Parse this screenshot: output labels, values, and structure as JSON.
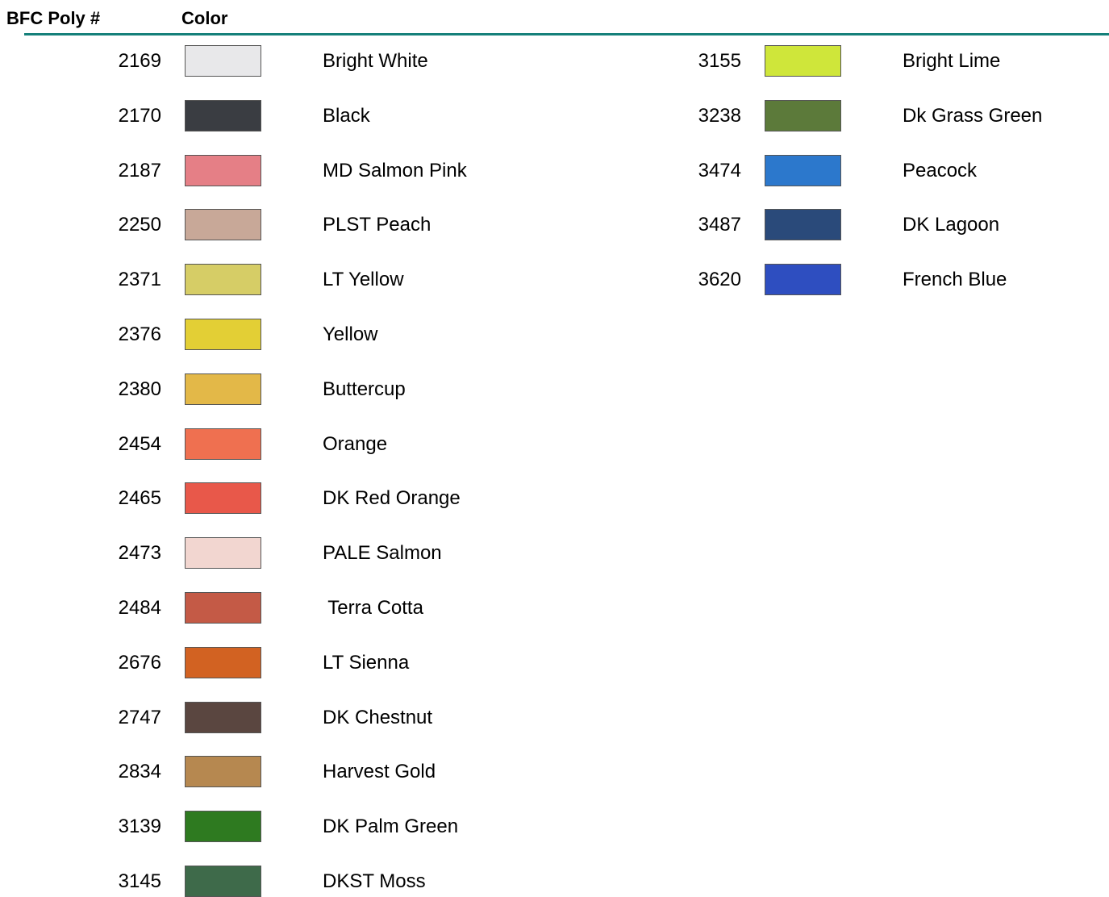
{
  "header": {
    "number": "BFC Poly #",
    "color": "Color"
  },
  "columns": [
    {
      "items": [
        {
          "number": "2169",
          "name": "Bright White",
          "swatch": "#e8e8ea"
        },
        {
          "number": "2170",
          "name": "Black",
          "swatch": "#3a3d42"
        },
        {
          "number": "2187",
          "name": "MD Salmon Pink",
          "swatch": "#e57f86"
        },
        {
          "number": "2250",
          "name": "PLST Peach",
          "swatch": "#c8a898"
        },
        {
          "number": "2371",
          "name": "LT Yellow",
          "swatch": "#d6cd66"
        },
        {
          "number": "2376",
          "name": "Yellow",
          "swatch": "#e3cf35"
        },
        {
          "number": "2380",
          "name": "Buttercup",
          "swatch": "#e3b848"
        },
        {
          "number": "2454",
          "name": "Orange",
          "swatch": "#ef7050"
        },
        {
          "number": "2465",
          "name": "DK Red Orange",
          "swatch": "#e8584a"
        },
        {
          "number": "2473",
          "name": "PALE Salmon",
          "swatch": "#f2d6d0"
        },
        {
          "number": "2484",
          "name": " Terra Cotta",
          "swatch": "#c45a46"
        },
        {
          "number": "2676",
          "name": "LT Sienna",
          "swatch": "#d26222"
        },
        {
          "number": "2747",
          "name": "DK Chestnut",
          "swatch": "#5a4640"
        },
        {
          "number": "2834",
          "name": "Harvest Gold",
          "swatch": "#b68850"
        },
        {
          "number": "3139",
          "name": "DK Palm Green",
          "swatch": "#2e7a20"
        },
        {
          "number": "3145",
          "name": "DKST Moss",
          "swatch": "#3e6a4a"
        }
      ]
    },
    {
      "items": [
        {
          "number": "3155",
          "name": "Bright Lime",
          "swatch": "#cfe63a"
        },
        {
          "number": "3238",
          "name": "Dk Grass Green",
          "swatch": "#5c7a3a"
        },
        {
          "number": "3474",
          "name": "Peacock",
          "swatch": "#2c78cc"
        },
        {
          "number": "3487",
          "name": "DK Lagoon",
          "swatch": "#2a4a7a"
        },
        {
          "number": "3620",
          "name": "French Blue",
          "swatch": "#2e4ec0"
        }
      ]
    }
  ]
}
